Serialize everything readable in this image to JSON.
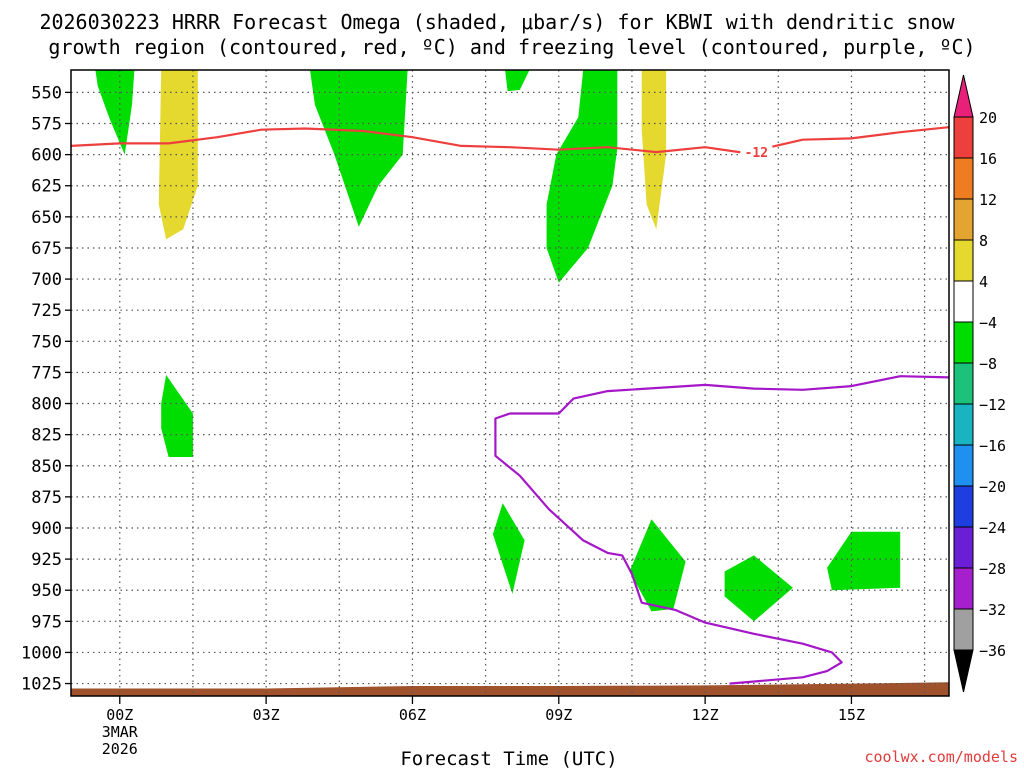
{
  "chart_data": {
    "type": "time-height",
    "title_line1": "2026030223 HRRR Forecast Omega (shaded, μbar/s) for KBWI with dendritic snow",
    "title_line2": "growth region (contoured, red, ºC) and freezing level (contoured, purple, ºC)",
    "xlabel": "Forecast Time (UTC)",
    "credit": "coolwx.com/models",
    "x_range": [
      -1,
      17
    ],
    "y_range": [
      1035,
      532
    ],
    "x_ticks": [
      {
        "hour": 0,
        "label": "00Z",
        "sub1": "3MAR",
        "sub2": "2026"
      },
      {
        "hour": 3,
        "label": "03Z"
      },
      {
        "hour": 6,
        "label": "06Z"
      },
      {
        "hour": 9,
        "label": "09Z"
      },
      {
        "hour": 12,
        "label": "12Z"
      },
      {
        "hour": 15,
        "label": "15Z"
      }
    ],
    "grid_hours": [
      0,
      1.5,
      3,
      4.5,
      6,
      7.5,
      9,
      10.5,
      12,
      13.5,
      15,
      16.5
    ],
    "y_levels": [
      550,
      575,
      600,
      625,
      650,
      675,
      700,
      725,
      750,
      775,
      800,
      825,
      850,
      875,
      900,
      925,
      950,
      975,
      1000,
      1025
    ],
    "colorbar": {
      "labels": [
        "20",
        "16",
        "12",
        "8",
        "4",
        "-4",
        "-8",
        "-12",
        "-16",
        "-20",
        "-24",
        "-28",
        "-32",
        "-36"
      ],
      "colors": [
        "#ee3f3f",
        "#ee7d22",
        "#e3a52f",
        "#e5d82f",
        "#ffffff",
        "#00dd00",
        "#1cc27a",
        "#19b3c2",
        "#1e90ef",
        "#1f3ee0",
        "#6a1fd6",
        "#a61fcc",
        "#a0a0a0"
      ],
      "top_arrow_color": "#e8207a",
      "bottom_arrow_color": "#000000"
    },
    "shaded_regions": [
      {
        "color": "#00dd00",
        "points": [
          [
            -0.5,
            532
          ],
          [
            0.3,
            532
          ],
          [
            0.25,
            560
          ],
          [
            0.1,
            600
          ],
          [
            -0.2,
            572
          ],
          [
            -0.45,
            545
          ]
        ]
      },
      {
        "color": "#e5d82f",
        "points": [
          [
            0.85,
            532
          ],
          [
            1.6,
            532
          ],
          [
            1.6,
            625
          ],
          [
            1.3,
            660
          ],
          [
            0.95,
            668
          ],
          [
            0.8,
            640
          ]
        ]
      },
      {
        "color": "#00dd00",
        "points": [
          [
            3.9,
            532
          ],
          [
            5.9,
            532
          ],
          [
            5.8,
            600
          ],
          [
            5.3,
            625
          ],
          [
            4.9,
            658
          ],
          [
            4.4,
            600
          ],
          [
            4.0,
            560
          ]
        ]
      },
      {
        "color": "#00dd00",
        "points": [
          [
            7.9,
            532
          ],
          [
            8.4,
            532
          ],
          [
            8.2,
            548
          ],
          [
            7.95,
            549
          ]
        ]
      },
      {
        "color": "#00dd00",
        "points": [
          [
            9.5,
            532
          ],
          [
            10.2,
            532
          ],
          [
            10.2,
            595
          ],
          [
            10.1,
            625
          ],
          [
            9.6,
            675
          ],
          [
            9.0,
            703
          ],
          [
            8.75,
            675
          ],
          [
            8.75,
            640
          ],
          [
            8.95,
            600
          ],
          [
            9.4,
            570
          ]
        ]
      },
      {
        "color": "#e5d82f",
        "points": [
          [
            10.7,
            532
          ],
          [
            11.2,
            532
          ],
          [
            11.2,
            600
          ],
          [
            11.0,
            660
          ],
          [
            10.8,
            640
          ],
          [
            10.7,
            580
          ]
        ]
      },
      {
        "color": "#00dd00",
        "points": [
          [
            0.95,
            777
          ],
          [
            1.5,
            808
          ],
          [
            1.5,
            843
          ],
          [
            1.0,
            843
          ],
          [
            0.85,
            820
          ],
          [
            0.85,
            800
          ]
        ]
      },
      {
        "color": "#00dd00",
        "points": [
          [
            7.85,
            880
          ],
          [
            8.3,
            910
          ],
          [
            8.05,
            953
          ],
          [
            7.65,
            905
          ]
        ]
      },
      {
        "color": "#00dd00",
        "points": [
          [
            10.9,
            893
          ],
          [
            11.6,
            927
          ],
          [
            11.35,
            965
          ],
          [
            10.9,
            967
          ],
          [
            10.45,
            935
          ]
        ]
      },
      {
        "color": "#00dd00",
        "points": [
          [
            13.0,
            922
          ],
          [
            13.8,
            948
          ],
          [
            13.0,
            975
          ],
          [
            12.4,
            955
          ],
          [
            12.4,
            935
          ]
        ]
      },
      {
        "color": "#00dd00",
        "points": [
          [
            15.0,
            903
          ],
          [
            16.0,
            903
          ],
          [
            16.0,
            948
          ],
          [
            14.6,
            950
          ],
          [
            14.5,
            932
          ]
        ]
      }
    ],
    "series": [
      {
        "name": "dendritic snow growth (-12 ºC)",
        "color": "#ee3f3f",
        "label": "-12",
        "label_at": [
          13.05,
          598
        ],
        "points": [
          [
            -1,
            593
          ],
          [
            0,
            591
          ],
          [
            1,
            591
          ],
          [
            2,
            586
          ],
          [
            2.9,
            580
          ],
          [
            3.8,
            579
          ],
          [
            5,
            581
          ],
          [
            6,
            586
          ],
          [
            7,
            593
          ],
          [
            8,
            594
          ],
          [
            9,
            596
          ],
          [
            10,
            594
          ],
          [
            11,
            598
          ],
          [
            12,
            594
          ],
          [
            12.7,
            598
          ],
          [
            13,
            597
          ],
          [
            14,
            588
          ],
          [
            15,
            587
          ],
          [
            16,
            582
          ],
          [
            17,
            578
          ]
        ]
      },
      {
        "name": "freezing level (0 ºC)",
        "color": "#a516c8",
        "label": "",
        "points": [
          [
            17,
            779
          ],
          [
            16,
            778
          ],
          [
            15,
            786
          ],
          [
            14,
            789
          ],
          [
            13,
            788
          ],
          [
            12,
            785
          ],
          [
            10,
            790
          ],
          [
            9.3,
            796
          ],
          [
            9.0,
            808
          ],
          [
            8,
            808
          ],
          [
            7.7,
            812
          ],
          [
            7.7,
            842
          ],
          [
            8.2,
            858
          ],
          [
            8.8,
            885
          ],
          [
            9.5,
            910
          ],
          [
            10,
            920
          ],
          [
            10.3,
            922
          ],
          [
            10.5,
            937
          ],
          [
            10.7,
            960
          ],
          [
            11.4,
            966
          ],
          [
            12,
            976
          ],
          [
            13,
            985
          ],
          [
            14,
            993
          ],
          [
            14.6,
            1000
          ],
          [
            14.8,
            1008
          ],
          [
            14.5,
            1015
          ],
          [
            14,
            1020
          ],
          [
            12.5,
            1025
          ]
        ]
      }
    ],
    "terrain": {
      "color": "#a0522d",
      "points": [
        [
          -1,
          1029
        ],
        [
          3,
          1029
        ],
        [
          6,
          1027
        ],
        [
          9,
          1027
        ],
        [
          12,
          1026.5
        ],
        [
          15,
          1025
        ],
        [
          17,
          1024
        ],
        [
          17,
          1035
        ],
        [
          -1,
          1035
        ]
      ]
    }
  }
}
